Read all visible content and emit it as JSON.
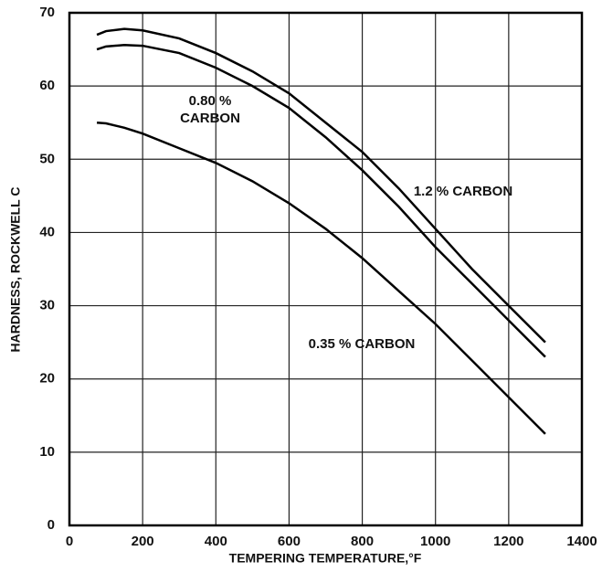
{
  "chart_data": {
    "type": "line",
    "x_label": "TEMPERING TEMPERATURE,°F",
    "y_label": "HARDNESS, ROCKWELL C",
    "x": [
      75,
      100,
      150,
      200,
      300,
      400,
      500,
      600,
      700,
      800,
      900,
      1000,
      1100,
      1200,
      1300
    ],
    "series": [
      {
        "name": "1.2 % CARBON",
        "color": "#000000",
        "values": [
          67,
          67.5,
          67.8,
          67.6,
          66.5,
          64.5,
          62,
          59,
          55,
          51,
          46,
          40.5,
          35,
          30,
          25
        ]
      },
      {
        "name": "0.80 % CARBON",
        "color": "#000000",
        "values": [
          65,
          65.4,
          65.6,
          65.5,
          64.5,
          62.5,
          60,
          57,
          53,
          48.5,
          43.5,
          38,
          33,
          28,
          23
        ]
      },
      {
        "name": "0.35 % CARBON",
        "color": "#000000",
        "values": [
          55,
          54.9,
          54.3,
          53.5,
          51.5,
          49.5,
          47,
          44,
          40.5,
          36.5,
          32,
          27.5,
          22.5,
          17.5,
          12.5
        ]
      }
    ],
    "annotations": [
      "0.80 %",
      "CARBON",
      "1.2 % CARBON",
      "0.35 % CARBON"
    ],
    "xlim": [
      0,
      1400
    ],
    "xticks": [
      0,
      200,
      400,
      600,
      800,
      1000,
      1200,
      1400
    ],
    "ylim": [
      0,
      70
    ],
    "yticks": [
      0,
      10,
      20,
      30,
      40,
      50,
      60,
      70
    ],
    "grid": true
  }
}
